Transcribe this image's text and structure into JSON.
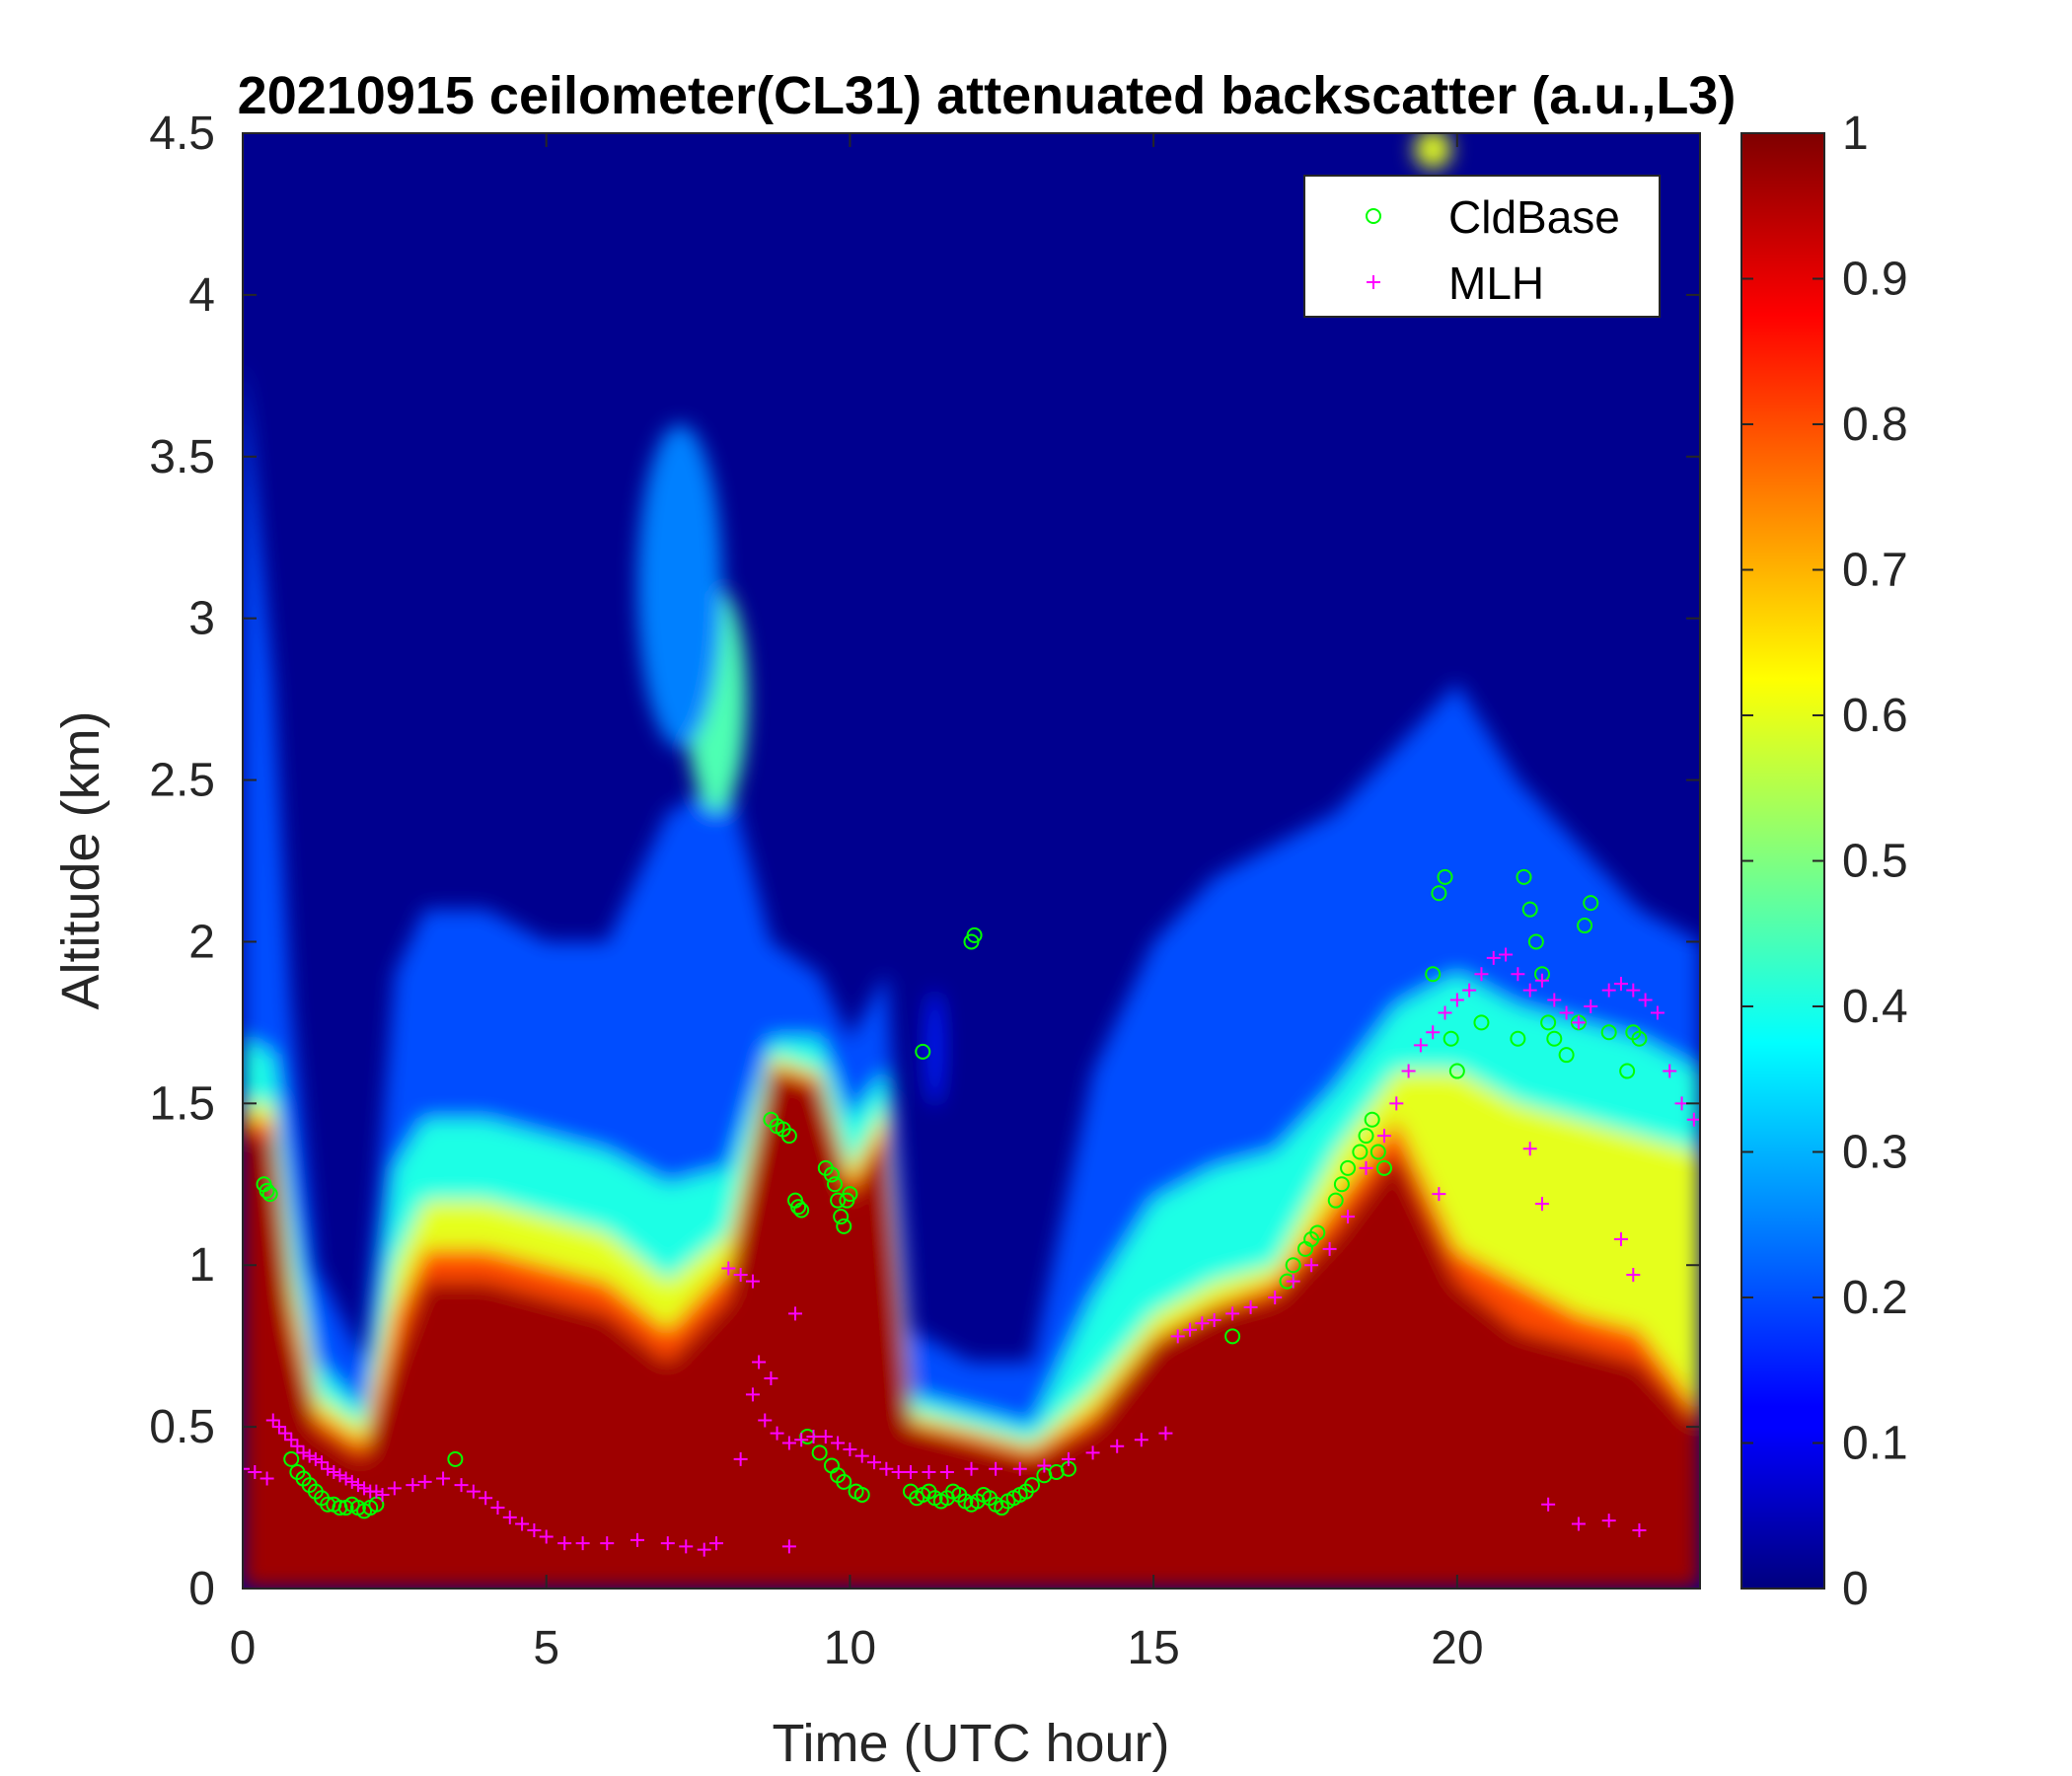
{
  "chart_data": {
    "type": "heatmap",
    "title": "20210915 ceilometer(CL31) attenuated backscatter (a.u.,L3)",
    "xlabel": "Time (UTC hour)",
    "ylabel": "Altitude (km)",
    "xlim": [
      0,
      24
    ],
    "ylim": [
      0,
      4.5
    ],
    "x_ticks": [
      "0",
      "5",
      "10",
      "15",
      "20"
    ],
    "y_ticks": [
      "0",
      "0.5",
      "1",
      "1.5",
      "2",
      "2.5",
      "3",
      "3.5",
      "4",
      "4.5"
    ],
    "colorbar": {
      "colormap": "jet",
      "range": [
        0,
        1
      ],
      "ticks": [
        "0",
        "0.1",
        "0.2",
        "0.3",
        "0.4",
        "0.5",
        "0.6",
        "0.7",
        "0.8",
        "0.9",
        "1"
      ]
    },
    "legend": {
      "position": "top-right",
      "entries": [
        {
          "name": "CldBase",
          "marker": "circle",
          "color": "#00ff00"
        },
        {
          "name": "MLH",
          "marker": "plus",
          "color": "#ff00ff"
        }
      ]
    },
    "heatmap_layers": [
      {
        "level": 0.97,
        "top": [
          [
            0,
            1.4
          ],
          [
            0.5,
            1.4
          ],
          [
            0.8,
            0.8
          ],
          [
            1.2,
            0.5
          ],
          [
            2.0,
            0.4
          ],
          [
            2.5,
            0.7
          ],
          [
            3,
            0.95
          ],
          [
            4,
            0.95
          ],
          [
            5,
            0.9
          ],
          [
            6,
            0.85
          ],
          [
            7,
            0.7
          ],
          [
            8,
            0.9
          ],
          [
            8.7,
            1.6
          ],
          [
            9.5,
            1.55
          ],
          [
            10,
            1.2
          ],
          [
            10.6,
            1.4
          ],
          [
            11,
            0.5
          ],
          [
            12,
            0.45
          ],
          [
            13,
            0.4
          ],
          [
            14,
            0.5
          ],
          [
            15,
            0.75
          ],
          [
            16,
            0.85
          ],
          [
            17,
            0.9
          ],
          [
            18,
            1.1
          ],
          [
            19,
            1.35
          ],
          [
            20,
            0.95
          ],
          [
            21,
            0.8
          ],
          [
            22,
            0.75
          ],
          [
            23,
            0.7
          ],
          [
            24,
            0.5
          ]
        ]
      },
      {
        "level": 0.8,
        "top": [
          [
            0,
            1.45
          ],
          [
            0.5,
            1.45
          ],
          [
            0.8,
            0.9
          ],
          [
            1.2,
            0.55
          ],
          [
            2.0,
            0.45
          ],
          [
            2.5,
            0.85
          ],
          [
            3,
            1.05
          ],
          [
            4,
            1.05
          ],
          [
            5,
            1.0
          ],
          [
            6,
            0.95
          ],
          [
            7,
            0.8
          ],
          [
            8,
            1.0
          ],
          [
            8.7,
            1.62
          ],
          [
            9.5,
            1.58
          ],
          [
            10,
            1.25
          ],
          [
            10.6,
            1.45
          ],
          [
            11,
            0.52
          ],
          [
            12,
            0.48
          ],
          [
            13,
            0.43
          ],
          [
            14,
            0.55
          ],
          [
            15,
            0.78
          ],
          [
            16,
            0.88
          ],
          [
            17,
            0.95
          ],
          [
            18,
            1.2
          ],
          [
            19,
            1.45
          ],
          [
            20,
            1.05
          ],
          [
            21,
            0.95
          ],
          [
            22,
            0.85
          ],
          [
            23,
            0.8
          ],
          [
            24,
            0.55
          ]
        ]
      },
      {
        "level": 0.6,
        "top": [
          [
            0,
            1.5
          ],
          [
            0.5,
            1.5
          ],
          [
            0.8,
            1.0
          ],
          [
            1.2,
            0.6
          ],
          [
            2.0,
            0.5
          ],
          [
            2.5,
            1.0
          ],
          [
            3,
            1.2
          ],
          [
            4,
            1.2
          ],
          [
            5,
            1.15
          ],
          [
            6,
            1.1
          ],
          [
            7,
            0.95
          ],
          [
            8,
            1.1
          ],
          [
            8.7,
            1.65
          ],
          [
            9.5,
            1.6
          ],
          [
            10,
            1.3
          ],
          [
            10.6,
            1.5
          ],
          [
            11,
            0.55
          ],
          [
            12,
            0.5
          ],
          [
            13,
            0.45
          ],
          [
            14,
            0.62
          ],
          [
            15,
            0.85
          ],
          [
            16,
            0.95
          ],
          [
            17,
            1.0
          ],
          [
            18,
            1.35
          ],
          [
            19,
            1.6
          ],
          [
            20,
            1.6
          ],
          [
            21,
            1.5
          ],
          [
            22,
            1.45
          ],
          [
            23,
            1.4
          ],
          [
            24,
            1.35
          ]
        ]
      },
      {
        "level": 0.4,
        "top": [
          [
            0,
            1.7
          ],
          [
            0.5,
            1.65
          ],
          [
            0.8,
            1.2
          ],
          [
            1.2,
            0.7
          ],
          [
            2.0,
            0.55
          ],
          [
            2.5,
            1.3
          ],
          [
            3,
            1.45
          ],
          [
            4,
            1.45
          ],
          [
            5,
            1.4
          ],
          [
            6,
            1.35
          ],
          [
            7,
            1.25
          ],
          [
            8,
            1.3
          ],
          [
            8.7,
            1.7
          ],
          [
            9.5,
            1.7
          ],
          [
            10,
            1.45
          ],
          [
            10.6,
            1.6
          ],
          [
            11,
            0.6
          ],
          [
            12,
            0.55
          ],
          [
            13,
            0.5
          ],
          [
            14,
            0.9
          ],
          [
            15,
            1.2
          ],
          [
            16,
            1.3
          ],
          [
            17,
            1.35
          ],
          [
            18,
            1.55
          ],
          [
            19,
            1.8
          ],
          [
            20,
            1.9
          ],
          [
            21,
            1.8
          ],
          [
            22,
            1.75
          ],
          [
            23,
            1.7
          ],
          [
            24,
            1.6
          ]
        ]
      },
      {
        "level": 0.2,
        "top": [
          [
            0,
            3.8
          ],
          [
            0.5,
            2.8
          ],
          [
            0.8,
            1.8
          ],
          [
            1.2,
            1.0
          ],
          [
            2.0,
            0.7
          ],
          [
            2.5,
            1.9
          ],
          [
            3,
            2.1
          ],
          [
            4,
            2.1
          ],
          [
            5,
            2.0
          ],
          [
            6,
            2.0
          ],
          [
            7,
            2.4
          ],
          [
            8,
            2.5
          ],
          [
            8.7,
            2.0
          ],
          [
            9.5,
            1.9
          ],
          [
            10,
            1.7
          ],
          [
            10.6,
            1.9
          ],
          [
            11,
            0.8
          ],
          [
            12,
            0.7
          ],
          [
            13,
            0.7
          ],
          [
            14,
            1.6
          ],
          [
            15,
            2.0
          ],
          [
            16,
            2.2
          ],
          [
            17,
            2.3
          ],
          [
            18,
            2.4
          ],
          [
            19,
            2.6
          ],
          [
            20,
            2.8
          ],
          [
            21,
            2.5
          ],
          [
            22,
            2.3
          ],
          [
            23,
            2.1
          ],
          [
            24,
            2.0
          ]
        ]
      }
    ],
    "heatmap_features": [
      {
        "name": "plume",
        "x": 7.8,
        "y": 2.75,
        "rx": 0.5,
        "ry": 0.35,
        "level": 0.45
      },
      {
        "name": "plume",
        "x": 7.2,
        "y": 3.1,
        "rx": 0.7,
        "ry": 0.5,
        "level": 0.25
      },
      {
        "name": "cloud",
        "x": 11.4,
        "y": 1.67,
        "rx": 0.15,
        "ry": 0.18,
        "level": 0.15
      },
      {
        "name": "cloud",
        "x": 19.6,
        "y": 4.45,
        "rx": 0.3,
        "ry": 0.06,
        "level": 0.6
      }
    ],
    "series": [
      {
        "name": "CldBase",
        "marker": "circle",
        "color": "#00ff00",
        "x": [
          0.35,
          0.4,
          0.45,
          0.8,
          0.9,
          1.0,
          1.1,
          1.2,
          1.3,
          1.4,
          1.5,
          1.6,
          1.7,
          1.8,
          1.9,
          2.0,
          2.1,
          2.2,
          3.5,
          8.7,
          8.8,
          8.9,
          9.0,
          9.1,
          9.15,
          9.2,
          9.6,
          9.7,
          9.75,
          9.8,
          9.85,
          9.9,
          9.95,
          10.0,
          9.3,
          9.5,
          9.7,
          9.8,
          9.9,
          10.1,
          10.2,
          11.0,
          11.1,
          11.2,
          11.3,
          11.4,
          11.5,
          11.6,
          11.7,
          11.8,
          11.9,
          12.0,
          12.1,
          12.2,
          12.3,
          12.4,
          12.5,
          12.6,
          12.7,
          12.8,
          12.9,
          13.0,
          13.2,
          13.4,
          13.6,
          11.2,
          12.0,
          12.05,
          16.3,
          17.2,
          17.3,
          17.5,
          17.6,
          17.7,
          18.0,
          18.1,
          18.2,
          18.4,
          18.5,
          18.6,
          18.7,
          18.8,
          19.6,
          19.7,
          19.8,
          19.9,
          20.0,
          20.4,
          21.0,
          21.1,
          21.2,
          21.3,
          21.4,
          21.5,
          21.6,
          21.8,
          22.0,
          22.1,
          22.2,
          22.5,
          22.8,
          22.9,
          23.0
        ],
        "y": [
          1.25,
          1.23,
          1.22,
          0.4,
          0.36,
          0.34,
          0.32,
          0.3,
          0.28,
          0.26,
          0.26,
          0.25,
          0.25,
          0.26,
          0.25,
          0.24,
          0.25,
          0.26,
          0.4,
          1.45,
          1.43,
          1.42,
          1.4,
          1.2,
          1.18,
          1.17,
          1.3,
          1.28,
          1.25,
          1.2,
          1.15,
          1.12,
          1.2,
          1.22,
          0.47,
          0.42,
          0.38,
          0.35,
          0.33,
          0.3,
          0.29,
          0.3,
          0.28,
          0.29,
          0.3,
          0.28,
          0.27,
          0.28,
          0.3,
          0.29,
          0.27,
          0.26,
          0.27,
          0.29,
          0.28,
          0.26,
          0.25,
          0.27,
          0.28,
          0.29,
          0.3,
          0.32,
          0.35,
          0.36,
          0.37,
          1.66,
          2.0,
          2.02,
          0.78,
          0.95,
          1.0,
          1.05,
          1.08,
          1.1,
          1.2,
          1.25,
          1.3,
          1.35,
          1.4,
          1.45,
          1.35,
          1.3,
          1.9,
          2.15,
          2.2,
          1.7,
          1.6,
          1.75,
          1.7,
          2.2,
          2.1,
          2.0,
          1.9,
          1.75,
          1.7,
          1.65,
          1.75,
          2.05,
          2.12,
          1.72,
          1.6,
          1.72,
          1.7
        ]
      },
      {
        "name": "MLH",
        "marker": "plus",
        "color": "#ff00ff",
        "x": [
          0.0,
          0.2,
          0.4,
          0.5,
          0.6,
          0.7,
          0.8,
          0.9,
          1.0,
          1.1,
          1.2,
          1.3,
          1.4,
          1.5,
          1.6,
          1.7,
          1.8,
          1.9,
          2.0,
          2.1,
          2.2,
          2.3,
          2.5,
          2.8,
          3.0,
          3.3,
          3.6,
          3.8,
          4.0,
          4.2,
          4.4,
          4.6,
          4.8,
          5.0,
          5.3,
          5.6,
          6.0,
          6.5,
          7.0,
          7.3,
          7.6,
          7.8,
          8.0,
          8.2,
          8.4,
          8.6,
          8.8,
          9.0,
          9.2,
          9.4,
          9.6,
          9.8,
          10.0,
          10.2,
          10.4,
          10.6,
          10.8,
          11.0,
          11.3,
          11.6,
          12.0,
          12.4,
          12.8,
          13.2,
          13.6,
          14.0,
          14.4,
          14.8,
          15.2,
          15.4,
          15.6,
          15.8,
          16.0,
          16.3,
          16.6,
          17.0,
          17.3,
          17.6,
          17.9,
          18.2,
          18.5,
          18.8,
          19.0,
          19.2,
          19.4,
          19.6,
          19.8,
          20.0,
          20.2,
          20.4,
          20.6,
          20.8,
          21.0,
          21.2,
          21.4,
          21.6,
          21.8,
          22.0,
          22.2,
          22.5,
          22.7,
          22.9,
          23.1,
          23.3,
          23.5,
          23.7,
          23.9,
          19.7,
          21.2,
          21.4,
          22.7,
          22.9,
          21.5,
          22.0,
          22.5,
          23.0,
          8.2,
          8.4,
          8.5,
          8.7,
          9.0,
          9.1
        ],
        "y": [
          0.37,
          0.36,
          0.34,
          0.52,
          0.5,
          0.48,
          0.46,
          0.44,
          0.42,
          0.41,
          0.4,
          0.39,
          0.37,
          0.36,
          0.35,
          0.34,
          0.33,
          0.32,
          0.31,
          0.3,
          0.3,
          0.29,
          0.31,
          0.32,
          0.33,
          0.34,
          0.32,
          0.3,
          0.28,
          0.25,
          0.22,
          0.2,
          0.18,
          0.16,
          0.14,
          0.14,
          0.14,
          0.15,
          0.14,
          0.13,
          0.12,
          0.14,
          0.99,
          0.97,
          0.95,
          0.52,
          0.48,
          0.45,
          0.46,
          0.47,
          0.47,
          0.45,
          0.43,
          0.41,
          0.39,
          0.37,
          0.36,
          0.36,
          0.36,
          0.36,
          0.37,
          0.37,
          0.37,
          0.38,
          0.4,
          0.42,
          0.44,
          0.46,
          0.48,
          0.78,
          0.8,
          0.82,
          0.83,
          0.85,
          0.87,
          0.9,
          0.95,
          1.0,
          1.05,
          1.15,
          1.3,
          1.4,
          1.5,
          1.6,
          1.68,
          1.72,
          1.78,
          1.82,
          1.85,
          1.9,
          1.95,
          1.96,
          1.9,
          1.85,
          1.88,
          1.82,
          1.78,
          1.75,
          1.8,
          1.85,
          1.87,
          1.85,
          1.82,
          1.78,
          1.6,
          1.5,
          1.45,
          1.22,
          1.36,
          1.19,
          1.08,
          0.97,
          0.26,
          0.2,
          0.21,
          0.18,
          0.4,
          0.6,
          0.7,
          0.65,
          0.13,
          0.85
        ]
      }
    ]
  }
}
